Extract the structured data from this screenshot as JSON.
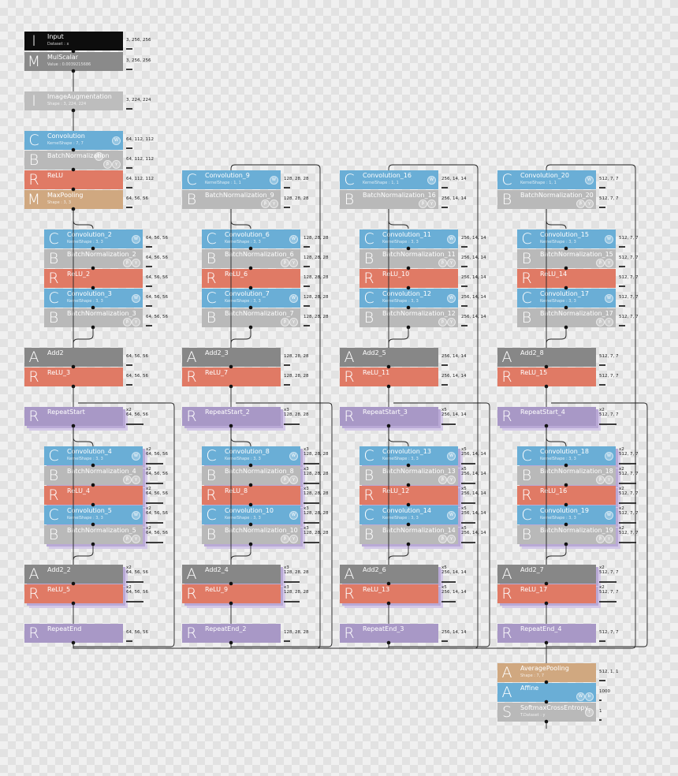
{
  "layers": [
    {
      "id": "input",
      "letter": "I",
      "name": "Input",
      "param": "Dataset : x",
      "shape": "3, 256, 256",
      "color": "input"
    },
    {
      "id": "mulscalar",
      "letter": "M",
      "name": "MulScalar",
      "param": "Value : 0.0039215686",
      "shape": "3, 256, 256",
      "color": "scalar"
    },
    {
      "id": "imageaug",
      "letter": "I",
      "name": "ImageAugmentation",
      "param": "Shape : 3, 224, 224",
      "shape": "3, 224, 224",
      "color": "light"
    },
    {
      "id": "conv",
      "letter": "C",
      "name": "Convolution",
      "param": "KernelShape : 7, 7",
      "shape": "64, 112, 112",
      "color": "conv",
      "badges": [
        "W"
      ]
    },
    {
      "id": "bn",
      "letter": "B",
      "name": "BatchNormalization",
      "param": "",
      "shape": "64, 112, 112",
      "color": "bn",
      "badges": [
        "m",
        "β",
        "γ"
      ]
    },
    {
      "id": "relu",
      "letter": "R",
      "name": "ReLU",
      "param": "",
      "shape": "64, 112, 112",
      "color": "relu"
    },
    {
      "id": "maxpool",
      "letter": "M",
      "name": "MaxPooling",
      "param": "Shape : 3, 3",
      "shape": "64, 56, 56",
      "color": "pool"
    },
    {
      "id": "conv9",
      "letter": "C",
      "name": "Convolution_9",
      "param": "KernelShape : 1, 1",
      "shape": "128, 28, 28",
      "color": "conv",
      "badges": [
        "W"
      ]
    },
    {
      "id": "bn9",
      "letter": "B",
      "name": "BatchNormalization_9",
      "param": "",
      "shape": "128, 28, 28",
      "color": "bn",
      "badges": [
        "β",
        "γ"
      ]
    },
    {
      "id": "conv16",
      "letter": "C",
      "name": "Convolution_16",
      "param": "KernelShape : 1, 1",
      "shape": "256, 14, 14",
      "color": "conv",
      "badges": [
        "W"
      ]
    },
    {
      "id": "bn16",
      "letter": "B",
      "name": "BatchNormalization_16",
      "param": "",
      "shape": "256, 14, 14",
      "color": "bn",
      "badges": [
        "β",
        "γ"
      ]
    },
    {
      "id": "conv20",
      "letter": "C",
      "name": "Convolution_20",
      "param": "KernelShape : 1, 1",
      "shape": "512, 7, 7",
      "color": "conv",
      "badges": [
        "W"
      ]
    },
    {
      "id": "bn20",
      "letter": "B",
      "name": "BatchNormalization_20",
      "param": "",
      "shape": "512, 7, 7",
      "color": "bn",
      "badges": [
        "β",
        "γ"
      ]
    },
    {
      "id": "conv2",
      "letter": "C",
      "name": "Convolution_2",
      "param": "KernelShape : 3, 3",
      "shape": "64, 56, 56",
      "color": "conv",
      "badges": [
        "W"
      ]
    },
    {
      "id": "bn2",
      "letter": "B",
      "name": "BatchNormalization_2",
      "param": "",
      "shape": "64, 56, 56",
      "color": "bn",
      "badges": [
        "β",
        "γ"
      ]
    },
    {
      "id": "relu2",
      "letter": "R",
      "name": "ReLU_2",
      "param": "",
      "shape": "64, 56, 56",
      "color": "relu"
    },
    {
      "id": "conv3",
      "letter": "C",
      "name": "Convolution_3",
      "param": "KernelShape : 3, 3",
      "shape": "64, 56, 56",
      "color": "conv",
      "badges": [
        "W"
      ]
    },
    {
      "id": "bn3",
      "letter": "B",
      "name": "BatchNormalization_3",
      "param": "",
      "shape": "64, 56, 56",
      "color": "bn",
      "badges": [
        "β",
        "γ"
      ]
    },
    {
      "id": "conv6",
      "letter": "C",
      "name": "Convolution_6",
      "param": "KernelShape : 3, 3",
      "shape": "128, 28, 28",
      "color": "conv",
      "badges": [
        "W"
      ]
    },
    {
      "id": "bn6",
      "letter": "B",
      "name": "BatchNormalization_6",
      "param": "",
      "shape": "128, 28, 28",
      "color": "bn",
      "badges": [
        "β",
        "γ"
      ]
    },
    {
      "id": "relu6",
      "letter": "R",
      "name": "ReLU_6",
      "param": "",
      "shape": "128, 28, 28",
      "color": "relu"
    },
    {
      "id": "conv7",
      "letter": "C",
      "name": "Convolution_7",
      "param": "KernelShape : 3, 3",
      "shape": "128, 28, 28",
      "color": "conv",
      "badges": [
        "W"
      ]
    },
    {
      "id": "bn7",
      "letter": "B",
      "name": "BatchNormalization_7",
      "param": "",
      "shape": "128, 28, 28",
      "color": "bn",
      "badges": [
        "β",
        "γ"
      ]
    },
    {
      "id": "conv11",
      "letter": "C",
      "name": "Convolution_11",
      "param": "KernelShape : 3, 3",
      "shape": "256, 14, 14",
      "color": "conv",
      "badges": [
        "W"
      ]
    },
    {
      "id": "bn11",
      "letter": "B",
      "name": "BatchNormalization_11",
      "param": "",
      "shape": "256, 14, 14",
      "color": "bn",
      "badges": [
        "β",
        "γ"
      ]
    },
    {
      "id": "relu10",
      "letter": "R",
      "name": "ReLU_10",
      "param": "",
      "shape": "256, 14, 14",
      "color": "relu"
    },
    {
      "id": "conv12",
      "letter": "C",
      "name": "Convolution_12",
      "param": "KernelShape : 3, 3",
      "shape": "256, 14, 14",
      "color": "conv",
      "badges": [
        "W"
      ]
    },
    {
      "id": "bn12",
      "letter": "B",
      "name": "BatchNormalization_12",
      "param": "",
      "shape": "256, 14, 14",
      "color": "bn",
      "badges": [
        "β",
        "γ"
      ]
    },
    {
      "id": "conv15",
      "letter": "C",
      "name": "Convolution_15",
      "param": "KernelShape : 3, 3",
      "shape": "512, 7, 7",
      "color": "conv",
      "badges": [
        "W"
      ]
    },
    {
      "id": "bn15",
      "letter": "B",
      "name": "BatchNormalization_15",
      "param": "",
      "shape": "512, 7, 7",
      "color": "bn",
      "badges": [
        "β",
        "γ"
      ]
    },
    {
      "id": "relu14",
      "letter": "R",
      "name": "ReLU_14",
      "param": "",
      "shape": "512, 7, 7",
      "color": "relu"
    },
    {
      "id": "conv17",
      "letter": "C",
      "name": "Convolution_17",
      "param": "KernelShape : 3, 3",
      "shape": "512, 7, 7",
      "color": "conv",
      "badges": [
        "W"
      ]
    },
    {
      "id": "bn17",
      "letter": "B",
      "name": "BatchNormalization_17",
      "param": "",
      "shape": "512, 7, 7",
      "color": "bn",
      "badges": [
        "β",
        "γ"
      ]
    },
    {
      "id": "add2",
      "letter": "A",
      "name": "Add2",
      "param": "",
      "shape": "64, 56, 56",
      "color": "add"
    },
    {
      "id": "relu3",
      "letter": "R",
      "name": "ReLU_3",
      "param": "",
      "shape": "64, 56, 56",
      "color": "relu"
    },
    {
      "id": "add2_3",
      "letter": "A",
      "name": "Add2_3",
      "param": "",
      "shape": "128, 28, 28",
      "color": "add"
    },
    {
      "id": "relu7",
      "letter": "R",
      "name": "ReLU_7",
      "param": "",
      "shape": "128, 28, 28",
      "color": "relu"
    },
    {
      "id": "add2_5",
      "letter": "A",
      "name": "Add2_5",
      "param": "",
      "shape": "256, 14, 14",
      "color": "add"
    },
    {
      "id": "relu11",
      "letter": "R",
      "name": "ReLU_11",
      "param": "",
      "shape": "256, 14, 14",
      "color": "relu"
    },
    {
      "id": "add2_8",
      "letter": "A",
      "name": "Add2_8",
      "param": "",
      "shape": "512, 7, 7",
      "color": "add"
    },
    {
      "id": "relu15",
      "letter": "R",
      "name": "ReLU_15",
      "param": "",
      "shape": "512, 7, 7",
      "color": "relu"
    },
    {
      "id": "repeatstart",
      "letter": "R",
      "name": "RepeatStart",
      "param": "",
      "shape": "64, 56, 56",
      "rep": "x2",
      "color": "repeat"
    },
    {
      "id": "repeatstart2",
      "letter": "R",
      "name": "RepeatStart_2",
      "param": "",
      "shape": "128, 28, 28",
      "rep": "x3",
      "color": "repeat"
    },
    {
      "id": "repeatstart3",
      "letter": "R",
      "name": "RepeatStart_3",
      "param": "",
      "shape": "256, 14, 14",
      "rep": "x5",
      "color": "repeat"
    },
    {
      "id": "repeatstart4",
      "letter": "R",
      "name": "RepeatStart_4",
      "param": "",
      "shape": "512, 7, 7",
      "rep": "x2",
      "color": "repeat"
    },
    {
      "id": "conv4",
      "letter": "C",
      "name": "Convolution_4",
      "param": "KernelShape : 3, 3",
      "shape": "64, 56, 56",
      "rep": "x2",
      "color": "conv",
      "badges": [
        "W"
      ]
    },
    {
      "id": "bn4",
      "letter": "B",
      "name": "BatchNormalization_4",
      "param": "",
      "shape": "64, 56, 56",
      "rep": "x2",
      "color": "bn",
      "badges": [
        "β",
        "γ"
      ]
    },
    {
      "id": "relu4",
      "letter": "R",
      "name": "ReLU_4",
      "param": "",
      "shape": "64, 56, 56",
      "rep": "x2",
      "color": "relu"
    },
    {
      "id": "conv5",
      "letter": "C",
      "name": "Convolution_5",
      "param": "KernelShape : 3, 3",
      "shape": "64, 56, 56",
      "rep": "x2",
      "color": "conv",
      "badges": [
        "W"
      ]
    },
    {
      "id": "bn5",
      "letter": "B",
      "name": "BatchNormalization_5",
      "param": "",
      "shape": "64, 56, 56",
      "rep": "x2",
      "color": "bn",
      "badges": [
        "β",
        "γ"
      ]
    },
    {
      "id": "conv8",
      "letter": "C",
      "name": "Convolution_8",
      "param": "KernelShape : 3, 3",
      "shape": "128, 28, 28",
      "rep": "x3",
      "color": "conv",
      "badges": [
        "W"
      ]
    },
    {
      "id": "bn8",
      "letter": "B",
      "name": "BatchNormalization_8",
      "param": "",
      "shape": "128, 28, 28",
      "rep": "x3",
      "color": "bn",
      "badges": [
        "β",
        "γ"
      ]
    },
    {
      "id": "relu8",
      "letter": "R",
      "name": "ReLU_8",
      "param": "",
      "shape": "128, 28, 28",
      "rep": "x3",
      "color": "relu"
    },
    {
      "id": "conv10",
      "letter": "C",
      "name": "Convolution_10",
      "param": "KernelShape : 3, 3",
      "shape": "128, 28, 28",
      "rep": "x3",
      "color": "conv",
      "badges": [
        "W"
      ]
    },
    {
      "id": "bn10",
      "letter": "B",
      "name": "BatchNormalization_10",
      "param": "",
      "shape": "128, 28, 28",
      "rep": "x3",
      "color": "bn",
      "badges": [
        "β",
        "γ"
      ]
    },
    {
      "id": "conv13",
      "letter": "C",
      "name": "Convolution_13",
      "param": "KernelShape : 3, 3",
      "shape": "256, 14, 14",
      "rep": "x5",
      "color": "conv",
      "badges": [
        "W"
      ]
    },
    {
      "id": "bn13",
      "letter": "B",
      "name": "BatchNormalization_13",
      "param": "",
      "shape": "256, 14, 14",
      "rep": "x5",
      "color": "bn",
      "badges": [
        "β",
        "γ"
      ]
    },
    {
      "id": "relu12",
      "letter": "R",
      "name": "ReLU_12",
      "param": "",
      "shape": "256, 14, 14",
      "rep": "x5",
      "color": "relu"
    },
    {
      "id": "conv14",
      "letter": "C",
      "name": "Convolution_14",
      "param": "KernelShape : 3, 3",
      "shape": "256, 14, 14",
      "rep": "x5",
      "color": "conv",
      "badges": [
        "W"
      ]
    },
    {
      "id": "bn14",
      "letter": "B",
      "name": "BatchNormalization_14",
      "param": "",
      "shape": "256, 14, 14",
      "rep": "x5",
      "color": "bn",
      "badges": [
        "β",
        "γ"
      ]
    },
    {
      "id": "conv18",
      "letter": "C",
      "name": "Convolution_18",
      "param": "KernelShape : 3, 3",
      "shape": "512, 7, 7",
      "rep": "x2",
      "color": "conv",
      "badges": [
        "W"
      ]
    },
    {
      "id": "bn18",
      "letter": "B",
      "name": "BatchNormalization_18",
      "param": "",
      "shape": "512, 7, 7",
      "rep": "x2",
      "color": "bn",
      "badges": [
        "β",
        "γ"
      ]
    },
    {
      "id": "relu16",
      "letter": "R",
      "name": "ReLU_16",
      "param": "",
      "shape": "512, 7, 7",
      "rep": "x2",
      "color": "relu"
    },
    {
      "id": "conv19",
      "letter": "C",
      "name": "Convolution_19",
      "param": "KernelShape : 3, 3",
      "shape": "512, 7, 7",
      "rep": "x2",
      "color": "conv",
      "badges": [
        "W"
      ]
    },
    {
      "id": "bn19",
      "letter": "B",
      "name": "BatchNormalization_19",
      "param": "",
      "shape": "512, 7, 7",
      "rep": "x2",
      "color": "bn",
      "badges": [
        "β",
        "γ"
      ]
    },
    {
      "id": "add2_2",
      "letter": "A",
      "name": "Add2_2",
      "param": "",
      "shape": "64, 56, 56",
      "rep": "x2",
      "color": "add"
    },
    {
      "id": "relu5",
      "letter": "R",
      "name": "ReLU_5",
      "param": "",
      "shape": "64, 56, 56",
      "rep": "x2",
      "color": "relu"
    },
    {
      "id": "add2_4",
      "letter": "A",
      "name": "Add2_4",
      "param": "",
      "shape": "128, 28, 28",
      "rep": "x3",
      "color": "add"
    },
    {
      "id": "relu9",
      "letter": "R",
      "name": "ReLU_9",
      "param": "",
      "shape": "128, 28, 28",
      "rep": "x3",
      "color": "relu"
    },
    {
      "id": "add2_6",
      "letter": "A",
      "name": "Add2_6",
      "param": "",
      "shape": "256, 14, 14",
      "rep": "x5",
      "color": "add"
    },
    {
      "id": "relu13",
      "letter": "R",
      "name": "ReLU_13",
      "param": "",
      "shape": "256, 14, 14",
      "rep": "x5",
      "color": "relu"
    },
    {
      "id": "add2_7",
      "letter": "A",
      "name": "Add2_7",
      "param": "",
      "shape": "512, 7, 7",
      "rep": "x2",
      "color": "add"
    },
    {
      "id": "relu17",
      "letter": "R",
      "name": "ReLU_17",
      "param": "",
      "shape": "512, 7, 7",
      "rep": "x2",
      "color": "relu"
    },
    {
      "id": "repeatend",
      "letter": "R",
      "name": "RepeatEnd",
      "param": "",
      "shape": "64, 56, 56",
      "color": "repeat"
    },
    {
      "id": "repeatend2",
      "letter": "R",
      "name": "RepeatEnd_2",
      "param": "",
      "shape": "128, 28, 28",
      "color": "repeat"
    },
    {
      "id": "repeatend3",
      "letter": "R",
      "name": "RepeatEnd_3",
      "param": "",
      "shape": "256, 14, 14",
      "color": "repeat"
    },
    {
      "id": "repeatend4",
      "letter": "R",
      "name": "RepeatEnd_4",
      "param": "",
      "shape": "512, 7, 7",
      "color": "repeat"
    },
    {
      "id": "avgpool",
      "letter": "A",
      "name": "AveragePooling",
      "param": "Shape : 7, 7",
      "shape": "512, 1, 1",
      "color": "pool"
    },
    {
      "id": "affine",
      "letter": "A",
      "name": "Affine",
      "param": "",
      "shape": "1000",
      "color": "conv",
      "badges": [
        "W",
        "b"
      ]
    },
    {
      "id": "softmax",
      "letter": "S",
      "name": "SoftmaxCrossEntropy",
      "param": "T.Dataset : y",
      "shape": "1",
      "color": "bn",
      "badges": [
        "T"
      ]
    }
  ]
}
